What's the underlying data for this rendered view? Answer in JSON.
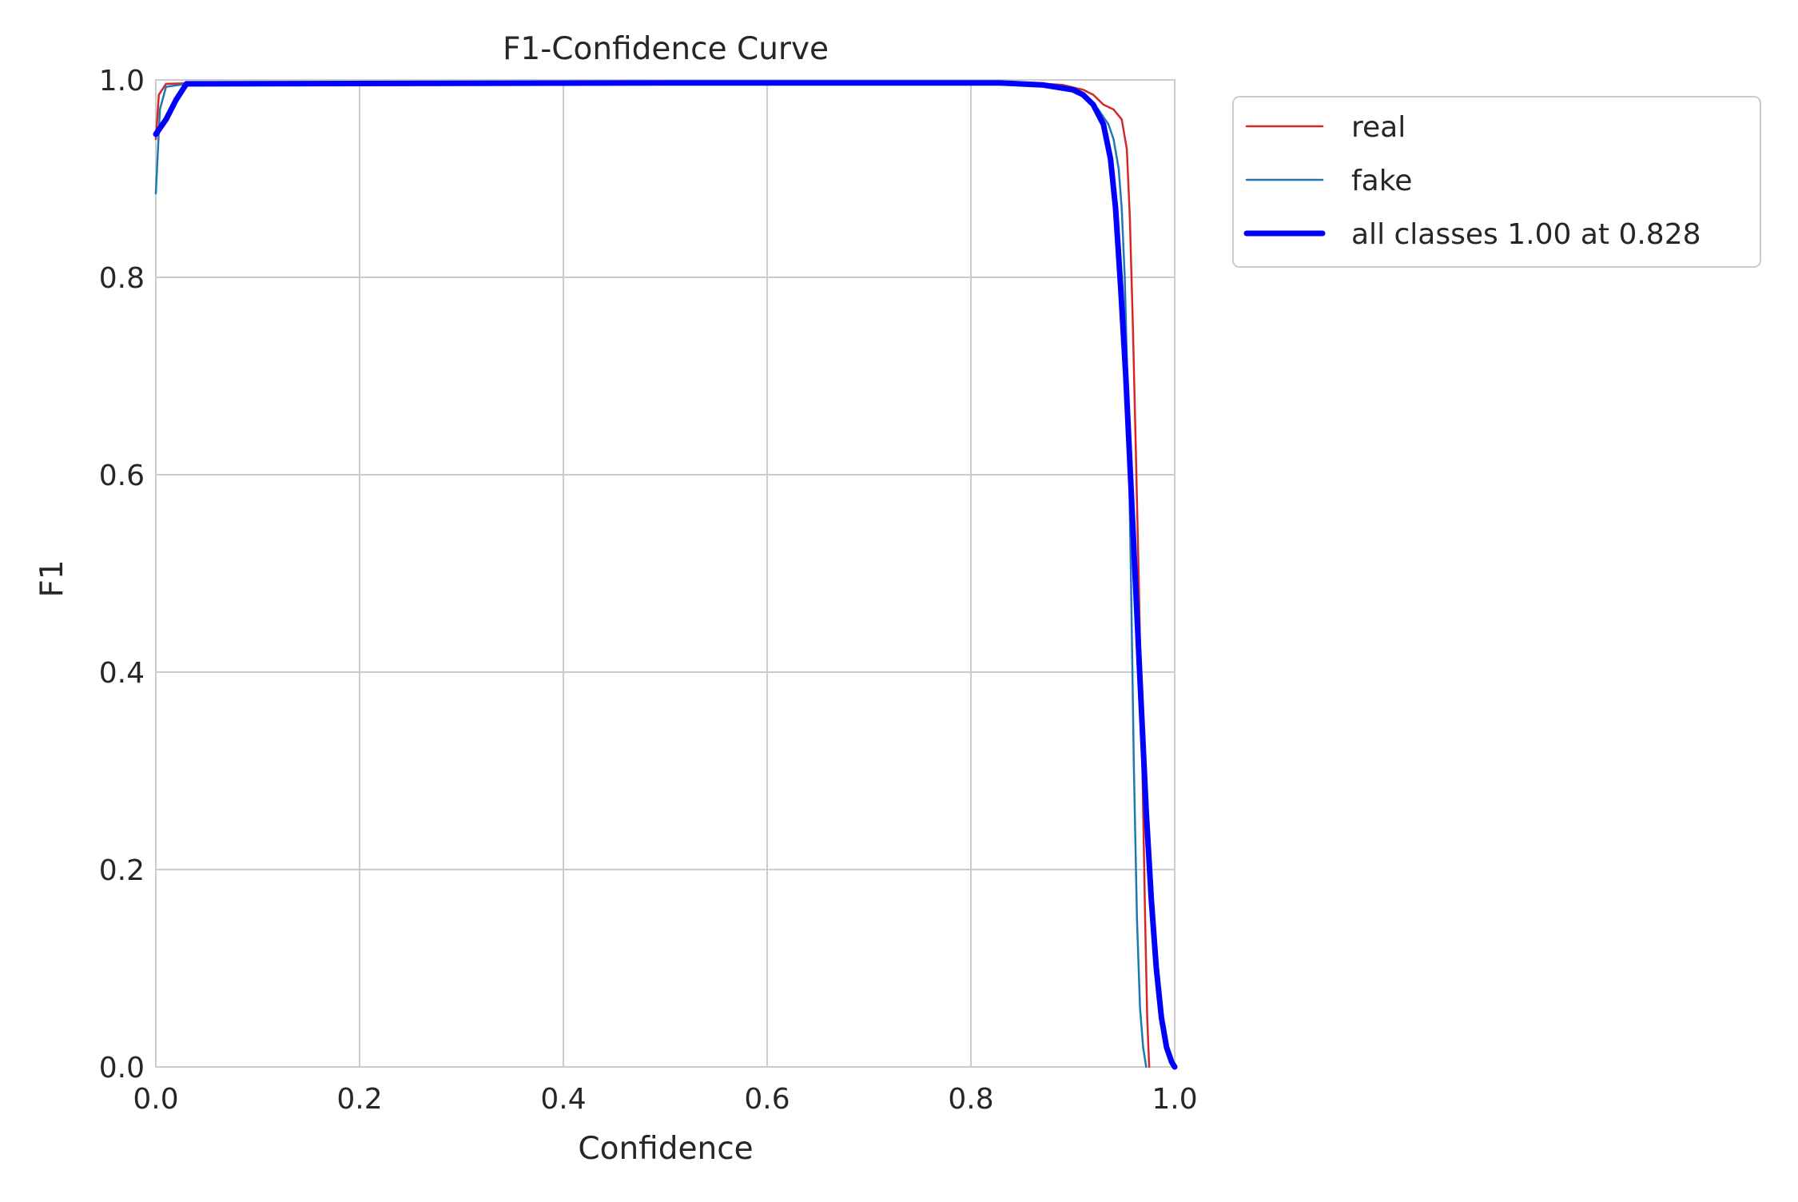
{
  "chart_data": {
    "type": "line",
    "title": "F1-Confidence Curve",
    "xlabel": "Confidence",
    "ylabel": "F1",
    "xlim": [
      0,
      1
    ],
    "ylim": [
      0,
      1
    ],
    "grid": true,
    "legend_position": "outside-top-right",
    "x_ticks": [
      "0.0",
      "0.2",
      "0.4",
      "0.6",
      "0.8",
      "1.0"
    ],
    "y_ticks": [
      "0.0",
      "0.2",
      "0.4",
      "0.6",
      "0.8",
      "1.0"
    ],
    "series": [
      {
        "name": "real",
        "color": "#d62728",
        "points": [
          [
            0.0,
            0.94
          ],
          [
            0.003,
            0.985
          ],
          [
            0.01,
            0.996
          ],
          [
            0.05,
            0.997
          ],
          [
            0.5,
            0.997
          ],
          [
            0.86,
            0.997
          ],
          [
            0.89,
            0.995
          ],
          [
            0.91,
            0.99
          ],
          [
            0.92,
            0.985
          ],
          [
            0.93,
            0.975
          ],
          [
            0.94,
            0.97
          ],
          [
            0.948,
            0.96
          ],
          [
            0.953,
            0.93
          ],
          [
            0.956,
            0.86
          ],
          [
            0.959,
            0.75
          ],
          [
            0.962,
            0.62
          ],
          [
            0.965,
            0.48
          ],
          [
            0.968,
            0.32
          ],
          [
            0.971,
            0.15
          ],
          [
            0.973,
            0.05
          ],
          [
            0.975,
            0.0
          ]
        ]
      },
      {
        "name": "fake",
        "color": "#1f77b4",
        "points": [
          [
            0.0,
            0.885
          ],
          [
            0.004,
            0.97
          ],
          [
            0.01,
            0.993
          ],
          [
            0.03,
            0.996
          ],
          [
            0.5,
            0.996
          ],
          [
            0.86,
            0.996
          ],
          [
            0.89,
            0.994
          ],
          [
            0.905,
            0.99
          ],
          [
            0.915,
            0.982
          ],
          [
            0.925,
            0.97
          ],
          [
            0.935,
            0.955
          ],
          [
            0.94,
            0.94
          ],
          [
            0.945,
            0.91
          ],
          [
            0.948,
            0.87
          ],
          [
            0.951,
            0.8
          ],
          [
            0.954,
            0.68
          ],
          [
            0.957,
            0.5
          ],
          [
            0.96,
            0.3
          ],
          [
            0.963,
            0.15
          ],
          [
            0.966,
            0.06
          ],
          [
            0.969,
            0.02
          ],
          [
            0.972,
            0.0
          ]
        ]
      },
      {
        "name": "all classes 1.00 at 0.828",
        "color": "#0000ff",
        "points": [
          [
            0.0,
            0.945
          ],
          [
            0.01,
            0.96
          ],
          [
            0.02,
            0.98
          ],
          [
            0.03,
            0.996
          ],
          [
            0.5,
            0.997
          ],
          [
            0.828,
            0.997
          ],
          [
            0.87,
            0.995
          ],
          [
            0.9,
            0.99
          ],
          [
            0.91,
            0.985
          ],
          [
            0.92,
            0.975
          ],
          [
            0.93,
            0.955
          ],
          [
            0.937,
            0.92
          ],
          [
            0.942,
            0.87
          ],
          [
            0.947,
            0.79
          ],
          [
            0.952,
            0.7
          ],
          [
            0.957,
            0.59
          ],
          [
            0.962,
            0.48
          ],
          [
            0.967,
            0.37
          ],
          [
            0.972,
            0.26
          ],
          [
            0.977,
            0.17
          ],
          [
            0.982,
            0.1
          ],
          [
            0.987,
            0.05
          ],
          [
            0.992,
            0.02
          ],
          [
            0.997,
            0.005
          ],
          [
            1.0,
            0.0
          ]
        ]
      }
    ]
  }
}
